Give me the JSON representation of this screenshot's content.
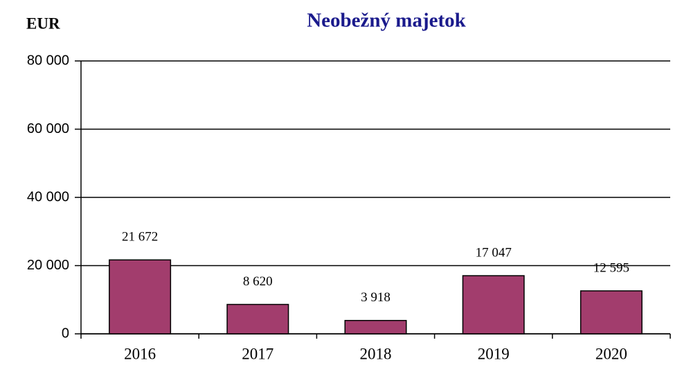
{
  "chart_data": {
    "type": "bar",
    "title": "Neobežný majetok",
    "y_label": "EUR",
    "categories": [
      "2016",
      "2017",
      "2018",
      "2019",
      "2020"
    ],
    "values": [
      21672,
      8620,
      3918,
      17047,
      12595
    ],
    "value_labels": [
      "21 672",
      "8 620",
      "3 918",
      "17 047",
      "12 595"
    ],
    "color": "#a23d6d",
    "ylim": [
      0,
      80000
    ],
    "yticks": [
      0,
      {
        "value": 20000,
        "label": "20 000"
      },
      {
        "value": 40000,
        "label": "40 000"
      },
      {
        "value": 60000,
        "label": "60 000"
      },
      {
        "value": 80000,
        "label": "80 000"
      }
    ],
    "grid": true
  }
}
